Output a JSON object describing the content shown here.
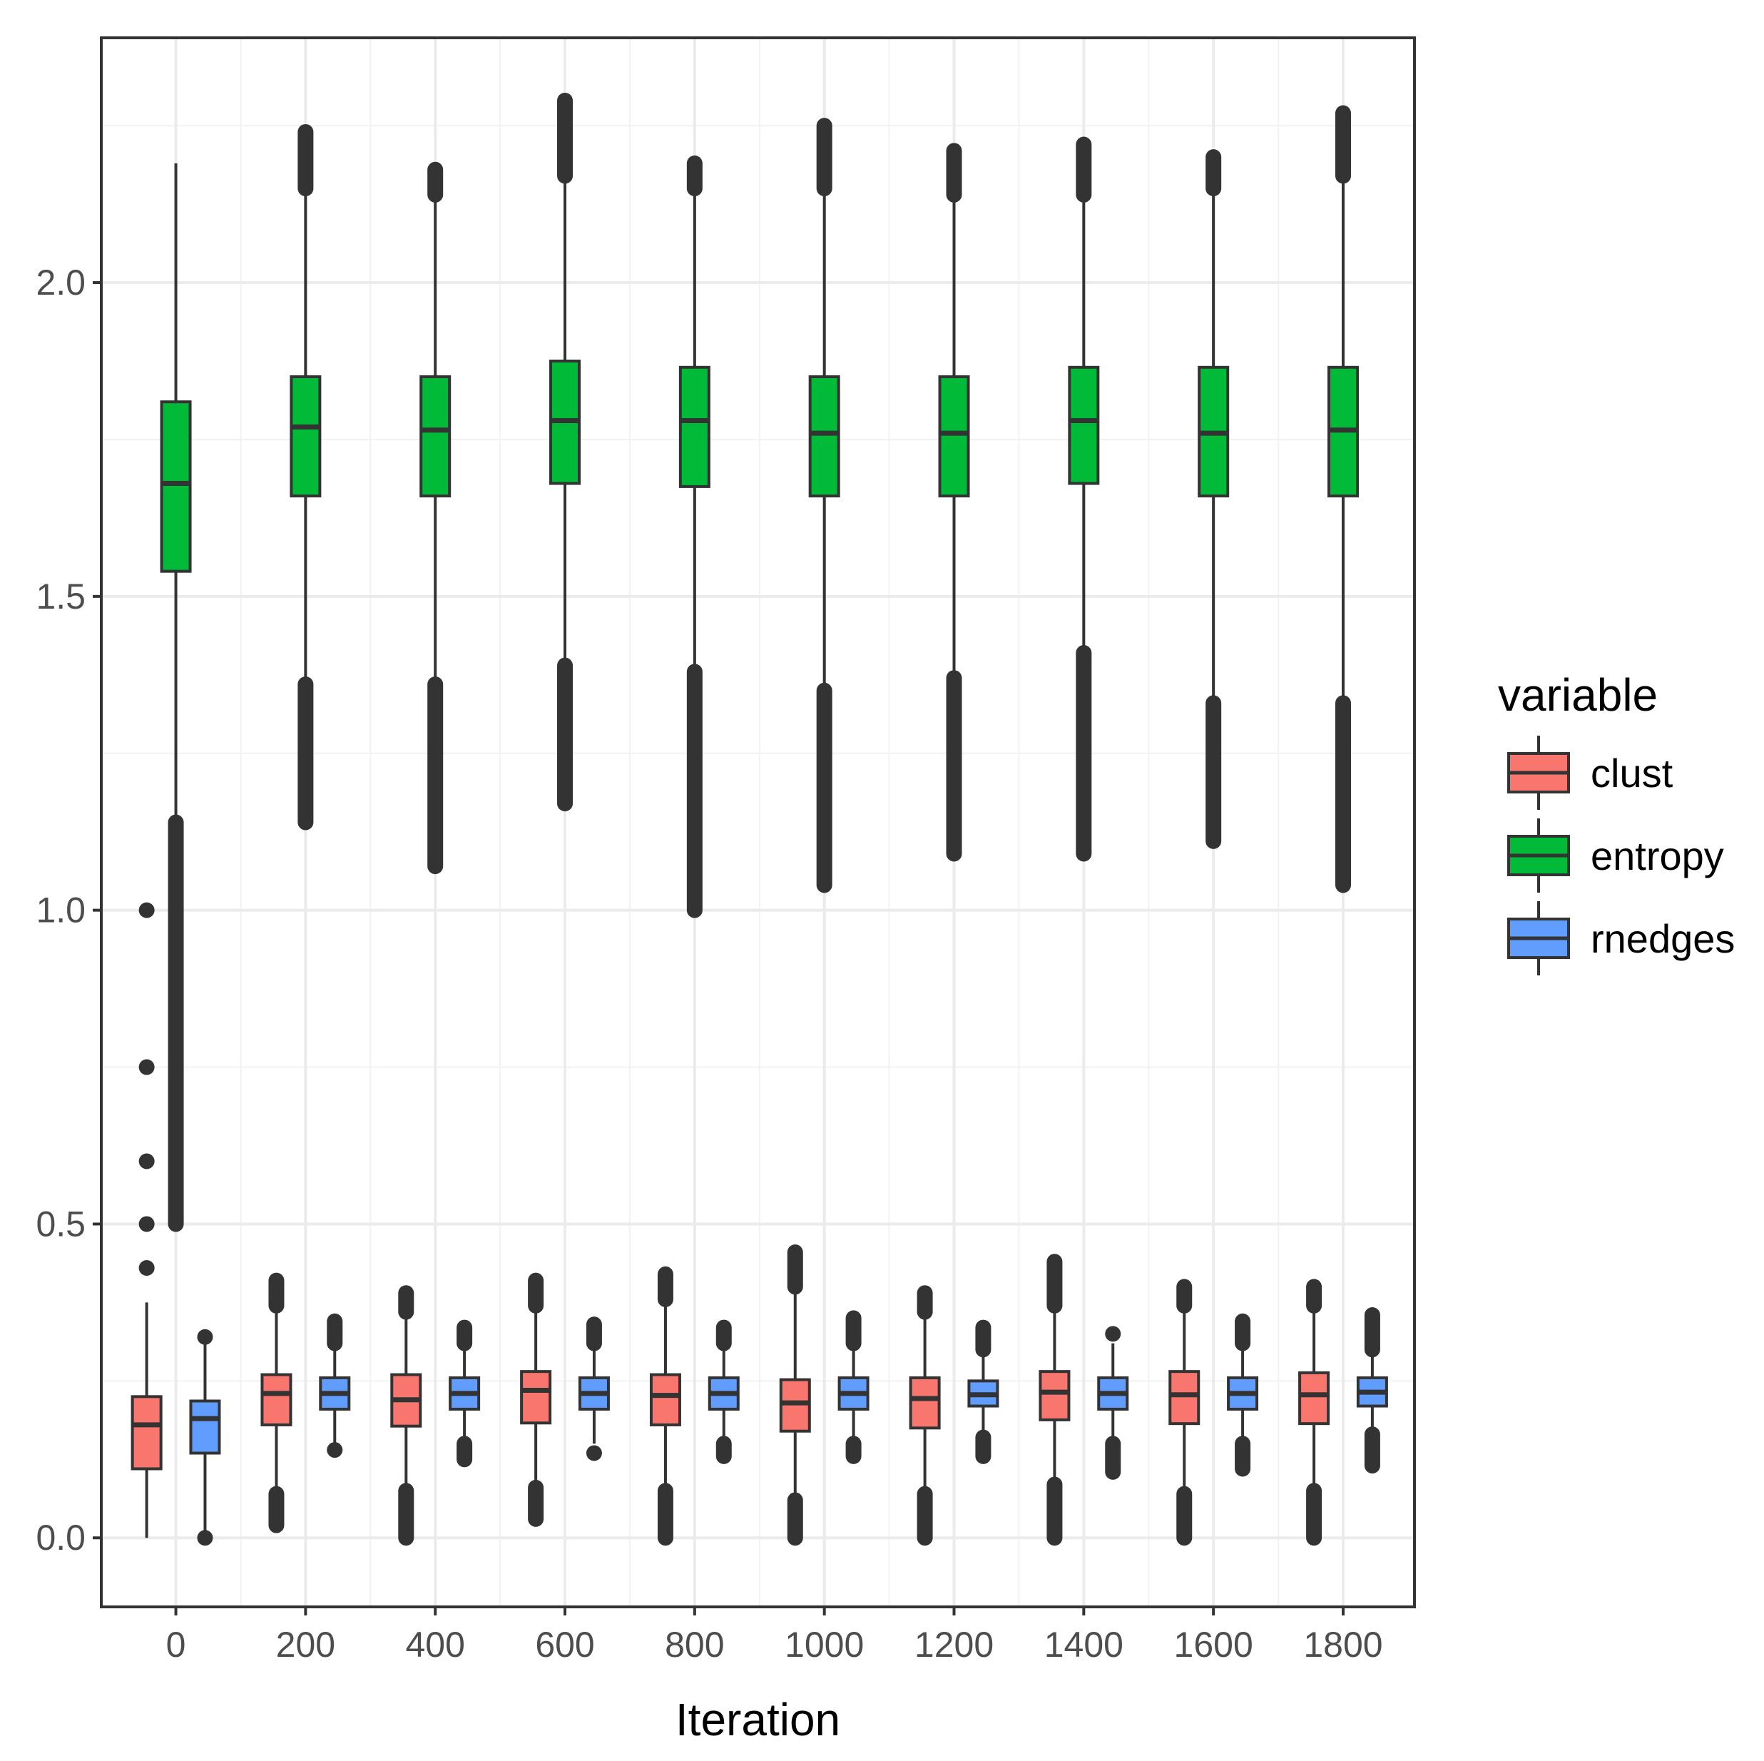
{
  "chart_data": {
    "type": "boxplot",
    "xlabel": "Iteration",
    "ylabel": "",
    "x_ticks": [
      0,
      200,
      400,
      600,
      800,
      1000,
      1200,
      1400,
      1600,
      1800
    ],
    "y_ticks": [
      0.0,
      0.5,
      1.0,
      1.5,
      2.0
    ],
    "y_tick_labels": [
      "0.0",
      "0.5",
      "1.0",
      "1.5",
      "2.0"
    ],
    "x_tick_labels": [
      "0",
      "200",
      "400",
      "600",
      "800",
      "1000",
      "1200",
      "1400",
      "1600",
      "1800"
    ],
    "xlim": [
      -115,
      1910
    ],
    "ylim": [
      -0.11,
      2.39
    ],
    "grid": true,
    "legend": {
      "title": "variable",
      "position": "right"
    },
    "series": [
      {
        "name": "clust",
        "color": "#F8766D",
        "boxes": [
          {
            "x": 0,
            "min": 0.0,
            "q1": 0.11,
            "median": 0.18,
            "q3": 0.225,
            "max": 0.375,
            "outliers": [
              0.43,
              0.5,
              0.6,
              0.75,
              1.0
            ]
          },
          {
            "x": 200,
            "min": 0.03,
            "q1": 0.18,
            "median": 0.23,
            "q3": 0.26,
            "max": 0.37,
            "outliers_low": [
              0.02,
              0.07
            ],
            "outliers_high": [
              0.37,
              0.41
            ]
          },
          {
            "x": 400,
            "min": 0.075,
            "q1": 0.178,
            "median": 0.22,
            "q3": 0.26,
            "max": 0.36,
            "outliers_low": [
              0.0,
              0.075
            ],
            "outliers_high": [
              0.36,
              0.39
            ]
          },
          {
            "x": 600,
            "min": 0.04,
            "q1": 0.183,
            "median": 0.235,
            "q3": 0.265,
            "max": 0.37,
            "outliers_low": [
              0.03,
              0.08
            ],
            "outliers_high": [
              0.37,
              0.41
            ]
          },
          {
            "x": 800,
            "min": 0.075,
            "q1": 0.18,
            "median": 0.227,
            "q3": 0.26,
            "max": 0.38,
            "outliers_low": [
              0.0,
              0.075
            ],
            "outliers_high": [
              0.38,
              0.42
            ]
          },
          {
            "x": 1000,
            "min": 0.06,
            "q1": 0.17,
            "median": 0.215,
            "q3": 0.252,
            "max": 0.4,
            "outliers_low": [
              0.0,
              0.06
            ],
            "outliers_high": [
              0.4,
              0.455
            ]
          },
          {
            "x": 1200,
            "min": 0.07,
            "q1": 0.175,
            "median": 0.222,
            "q3": 0.255,
            "max": 0.36,
            "outliers_low": [
              0.0,
              0.07
            ],
            "outliers_high": [
              0.36,
              0.39
            ]
          },
          {
            "x": 1400,
            "min": 0.085,
            "q1": 0.188,
            "median": 0.232,
            "q3": 0.265,
            "max": 0.37,
            "outliers_low": [
              0.0,
              0.085
            ],
            "outliers_high": [
              0.37,
              0.44
            ]
          },
          {
            "x": 1600,
            "min": 0.07,
            "q1": 0.182,
            "median": 0.228,
            "q3": 0.265,
            "max": 0.37,
            "outliers_low": [
              0.0,
              0.07
            ],
            "outliers_high": [
              0.37,
              0.4
            ]
          },
          {
            "x": 1800,
            "min": 0.075,
            "q1": 0.182,
            "median": 0.228,
            "q3": 0.263,
            "max": 0.37,
            "outliers_low": [
              0.0,
              0.075
            ],
            "outliers_high": [
              0.37,
              0.4
            ]
          }
        ]
      },
      {
        "name": "entropy",
        "color": "#00BA38",
        "boxes": [
          {
            "x": 0,
            "min": 1.15,
            "q1": 1.54,
            "median": 1.68,
            "q3": 1.81,
            "max": 2.19,
            "outliers_low": [
              0.5,
              1.14
            ]
          },
          {
            "x": 200,
            "min": 1.37,
            "q1": 1.66,
            "median": 1.77,
            "q3": 1.85,
            "max": 2.15,
            "outliers_low": [
              1.14,
              1.36
            ],
            "outliers_high": [
              2.15,
              2.24
            ]
          },
          {
            "x": 400,
            "min": 1.37,
            "q1": 1.66,
            "median": 1.765,
            "q3": 1.85,
            "max": 2.14,
            "outliers_low": [
              1.07,
              1.36
            ],
            "outliers_high": [
              2.14,
              2.18
            ]
          },
          {
            "x": 600,
            "min": 1.4,
            "q1": 1.68,
            "median": 1.78,
            "q3": 1.875,
            "max": 2.17,
            "outliers_low": [
              1.17,
              1.39
            ],
            "outliers_high": [
              2.17,
              2.29
            ]
          },
          {
            "x": 800,
            "min": 1.39,
            "q1": 1.675,
            "median": 1.78,
            "q3": 1.865,
            "max": 2.15,
            "outliers_low": [
              1.0,
              1.38
            ],
            "outliers_high": [
              2.15,
              2.19
            ]
          },
          {
            "x": 1000,
            "min": 1.36,
            "q1": 1.66,
            "median": 1.76,
            "q3": 1.85,
            "max": 2.15,
            "outliers_low": [
              1.04,
              1.35
            ],
            "outliers_high": [
              2.15,
              2.25
            ]
          },
          {
            "x": 1200,
            "min": 1.38,
            "q1": 1.66,
            "median": 1.76,
            "q3": 1.85,
            "max": 2.14,
            "outliers_low": [
              1.09,
              1.37
            ],
            "outliers_high": [
              2.14,
              2.21
            ]
          },
          {
            "x": 1400,
            "min": 1.41,
            "q1": 1.68,
            "median": 1.78,
            "q3": 1.865,
            "max": 2.14,
            "outliers_low": [
              1.09,
              1.41
            ],
            "outliers_high": [
              2.14,
              2.22
            ]
          },
          {
            "x": 1600,
            "min": 1.34,
            "q1": 1.66,
            "median": 1.76,
            "q3": 1.865,
            "max": 2.15,
            "outliers_low": [
              1.11,
              1.33
            ],
            "outliers_high": [
              2.15,
              2.2
            ]
          },
          {
            "x": 1800,
            "min": 1.34,
            "q1": 1.66,
            "median": 1.765,
            "q3": 1.865,
            "max": 2.17,
            "outliers_low": [
              1.04,
              1.33
            ],
            "outliers_high": [
              2.17,
              2.27
            ]
          }
        ]
      },
      {
        "name": "rnedges",
        "color": "#619CFF",
        "boxes": [
          {
            "x": 0,
            "min": 0.0,
            "q1": 0.135,
            "median": 0.19,
            "q3": 0.218,
            "max": 0.32,
            "outliers": [
              0.0,
              0.32
            ]
          },
          {
            "x": 200,
            "min": 0.14,
            "q1": 0.205,
            "median": 0.23,
            "q3": 0.255,
            "max": 0.31,
            "outliers_low": [
              0.14
            ],
            "outliers_high": [
              0.31,
              0.345
            ]
          },
          {
            "x": 400,
            "min": 0.15,
            "q1": 0.205,
            "median": 0.23,
            "q3": 0.255,
            "max": 0.31,
            "outliers_low": [
              0.125,
              0.15
            ],
            "outliers_high": [
              0.31,
              0.335
            ]
          },
          {
            "x": 600,
            "min": 0.15,
            "q1": 0.205,
            "median": 0.23,
            "q3": 0.255,
            "max": 0.31,
            "outliers_low": [
              0.135
            ],
            "outliers_high": [
              0.31,
              0.34
            ]
          },
          {
            "x": 800,
            "min": 0.15,
            "q1": 0.205,
            "median": 0.23,
            "q3": 0.255,
            "max": 0.31,
            "outliers_low": [
              0.13,
              0.15
            ],
            "outliers_high": [
              0.31,
              0.335
            ]
          },
          {
            "x": 1000,
            "min": 0.15,
            "q1": 0.205,
            "median": 0.23,
            "q3": 0.255,
            "max": 0.31,
            "outliers_low": [
              0.13,
              0.15
            ],
            "outliers_high": [
              0.31,
              0.35
            ]
          },
          {
            "x": 1200,
            "min": 0.16,
            "q1": 0.21,
            "median": 0.228,
            "q3": 0.25,
            "max": 0.3,
            "outliers_low": [
              0.13,
              0.16
            ],
            "outliers_high": [
              0.3,
              0.335
            ]
          },
          {
            "x": 1400,
            "min": 0.15,
            "q1": 0.205,
            "median": 0.23,
            "q3": 0.255,
            "max": 0.31,
            "outliers_low": [
              0.105,
              0.15
            ],
            "outliers_high": [
              0.325
            ]
          },
          {
            "x": 1600,
            "min": 0.15,
            "q1": 0.205,
            "median": 0.23,
            "q3": 0.255,
            "max": 0.31,
            "outliers_low": [
              0.11,
              0.15
            ],
            "outliers_high": [
              0.31,
              0.345
            ]
          },
          {
            "x": 1800,
            "min": 0.165,
            "q1": 0.21,
            "median": 0.232,
            "q3": 0.255,
            "max": 0.3,
            "outliers_low": [
              0.115,
              0.165
            ],
            "outliers_high": [
              0.3,
              0.355
            ]
          }
        ]
      }
    ]
  }
}
